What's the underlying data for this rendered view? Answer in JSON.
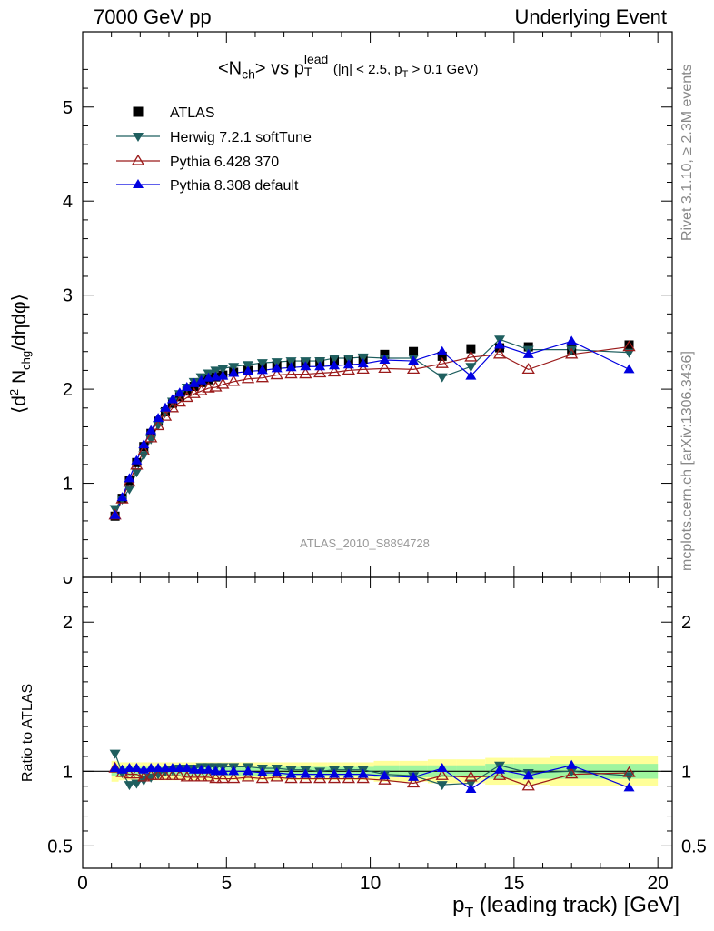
{
  "header": {
    "left": "7000 GeV pp",
    "right": "Underlying Event"
  },
  "side_labels": {
    "rivet": "Rivet 3.1.10, ≥ 2.3M events",
    "mcplots": "mcplots.cern.ch [arXiv:1306.3436]"
  },
  "watermark": "ATLAS_2010_S8894728",
  "colors": {
    "atlas": "#000000",
    "herwig": "#1f5f5f",
    "pythia6": "#9b1b1b",
    "pythia8": "#0000e0",
    "band_inner": "#9ff59f",
    "band_outer": "#ffff99"
  },
  "chart_data": [
    {
      "type": "scatter",
      "title": "<N_ch> vs p_T^lead (|η| < 2.5, p_T > 0.1 GeV)",
      "title_parts": {
        "main": "<N",
        "sub1": "ch",
        "mid": "> vs p",
        "sup": "lead",
        "sub2": "T",
        "cut": "(|η| < 2.5, p",
        "cut_sub": "T",
        "cut_end": " > 0.1 GeV)"
      },
      "ylabel": "⟨d² N_chg/dηdφ⟩",
      "ylabel_parts": {
        "pre": "⟨d",
        "sup": "2",
        "mid": " N",
        "sub": "chg",
        "post": "/dηdφ⟩"
      },
      "xlim": [
        0,
        20.5
      ],
      "ylim": [
        0,
        5.8
      ],
      "yticks": [
        "0",
        "1",
        "2",
        "3",
        "4",
        "5"
      ],
      "x": [
        1.125,
        1.375,
        1.625,
        1.875,
        2.125,
        2.375,
        2.625,
        2.875,
        3.125,
        3.375,
        3.625,
        3.875,
        4.125,
        4.375,
        4.625,
        4.875,
        5.25,
        5.75,
        6.25,
        6.75,
        7.25,
        7.75,
        8.25,
        8.75,
        9.25,
        9.75,
        10.5,
        11.5,
        12.5,
        13.5,
        14.5,
        15.5,
        17.0,
        19.0
      ],
      "series": [
        {
          "name": "ATLAS",
          "marker": "square",
          "values": [
            0.65,
            0.84,
            1.03,
            1.22,
            1.39,
            1.53,
            1.66,
            1.76,
            1.85,
            1.92,
            1.98,
            2.03,
            2.07,
            2.1,
            2.13,
            2.15,
            2.18,
            2.2,
            2.23,
            2.25,
            2.27,
            2.28,
            2.29,
            2.3,
            2.31,
            2.32,
            2.37,
            2.4,
            2.35,
            2.43,
            2.44,
            2.45,
            2.42,
            2.47
          ]
        },
        {
          "name": "Herwig 7.2.1 softTune",
          "marker": "triangle-down",
          "values": [
            0.73,
            0.83,
            0.94,
            1.12,
            1.3,
            1.47,
            1.62,
            1.76,
            1.87,
            1.95,
            2.02,
            2.08,
            2.13,
            2.17,
            2.2,
            2.22,
            2.24,
            2.26,
            2.28,
            2.29,
            2.3,
            2.3,
            2.3,
            2.33,
            2.33,
            2.34,
            2.33,
            2.33,
            2.13,
            2.24,
            2.53,
            2.42,
            2.42,
            2.39
          ]
        },
        {
          "name": "Pythia 6.428 370",
          "marker": "triangle-up-open",
          "values": [
            0.66,
            0.83,
            1.01,
            1.19,
            1.34,
            1.48,
            1.61,
            1.71,
            1.8,
            1.86,
            1.91,
            1.95,
            1.98,
            2.01,
            2.02,
            2.05,
            2.08,
            2.11,
            2.12,
            2.15,
            2.16,
            2.16,
            2.17,
            2.18,
            2.2,
            2.21,
            2.22,
            2.21,
            2.27,
            2.34,
            2.37,
            2.21,
            2.37,
            2.45
          ]
        },
        {
          "name": "Pythia 8.308 default",
          "marker": "triangle-up",
          "values": [
            0.66,
            0.85,
            1.05,
            1.24,
            1.41,
            1.56,
            1.69,
            1.8,
            1.89,
            1.96,
            2.02,
            2.06,
            2.09,
            2.12,
            2.13,
            2.14,
            2.17,
            2.19,
            2.2,
            2.22,
            2.23,
            2.24,
            2.24,
            2.25,
            2.26,
            2.27,
            2.31,
            2.3,
            2.4,
            2.14,
            2.47,
            2.37,
            2.51,
            2.21
          ]
        }
      ],
      "legend": "top-left"
    },
    {
      "type": "scatter",
      "ylabel": "Ratio to ATLAS",
      "xlabel": "p_T (leading track) [GeV]",
      "xlabel_parts": {
        "pre": "p",
        "sub": "T",
        "post": " (leading track) [GeV]"
      },
      "xlim": [
        0,
        20.5
      ],
      "ylim": [
        0.35,
        2.3
      ],
      "xticks": [
        "0",
        "5",
        "10",
        "15",
        "20"
      ],
      "yticks": [
        "0.5",
        "1",
        "2"
      ],
      "series": [
        {
          "name": "Herwig 7.2.1 softTune",
          "values": [
            1.12,
            0.99,
            0.91,
            0.92,
            0.94,
            0.96,
            0.98,
            1.0,
            1.01,
            1.02,
            1.02,
            1.02,
            1.03,
            1.03,
            1.03,
            1.03,
            1.03,
            1.03,
            1.02,
            1.02,
            1.01,
            1.01,
            1.0,
            1.01,
            1.01,
            1.01,
            0.98,
            0.97,
            0.91,
            0.92,
            1.04,
            0.99,
            1.0,
            0.97
          ]
        },
        {
          "name": "Pythia 6.428 370",
          "values": [
            1.02,
            0.99,
            0.98,
            0.98,
            0.96,
            0.97,
            0.97,
            0.97,
            0.97,
            0.97,
            0.96,
            0.96,
            0.96,
            0.96,
            0.95,
            0.95,
            0.95,
            0.96,
            0.95,
            0.96,
            0.95,
            0.95,
            0.95,
            0.95,
            0.95,
            0.95,
            0.94,
            0.92,
            0.97,
            0.96,
            0.97,
            0.9,
            0.98,
            0.99
          ]
        },
        {
          "name": "Pythia 8.308 default",
          "values": [
            1.02,
            1.01,
            1.02,
            1.02,
            1.01,
            1.02,
            1.02,
            1.02,
            1.02,
            1.02,
            1.02,
            1.01,
            1.01,
            1.01,
            1.0,
            1.0,
            1.0,
            1.0,
            0.99,
            0.99,
            0.98,
            0.98,
            0.98,
            0.98,
            0.98,
            0.98,
            0.97,
            0.96,
            1.02,
            0.88,
            1.01,
            0.97,
            1.04,
            0.89
          ]
        }
      ],
      "band_inner_halfwidth": [
        0.03,
        0.03,
        0.03,
        0.03,
        0.03,
        0.03,
        0.03,
        0.03,
        0.03,
        0.03,
        0.03,
        0.03,
        0.03,
        0.03,
        0.03,
        0.03,
        0.03,
        0.03,
        0.03,
        0.03,
        0.03,
        0.03,
        0.03,
        0.03,
        0.03,
        0.03,
        0.04,
        0.04,
        0.04,
        0.04,
        0.05,
        0.05,
        0.05,
        0.05
      ],
      "band_outer_halfwidth": [
        0.07,
        0.06,
        0.06,
        0.06,
        0.06,
        0.06,
        0.06,
        0.06,
        0.06,
        0.06,
        0.06,
        0.06,
        0.06,
        0.06,
        0.06,
        0.06,
        0.06,
        0.06,
        0.06,
        0.06,
        0.06,
        0.06,
        0.06,
        0.06,
        0.06,
        0.06,
        0.07,
        0.07,
        0.08,
        0.08,
        0.09,
        0.09,
        0.1,
        0.1
      ]
    }
  ]
}
